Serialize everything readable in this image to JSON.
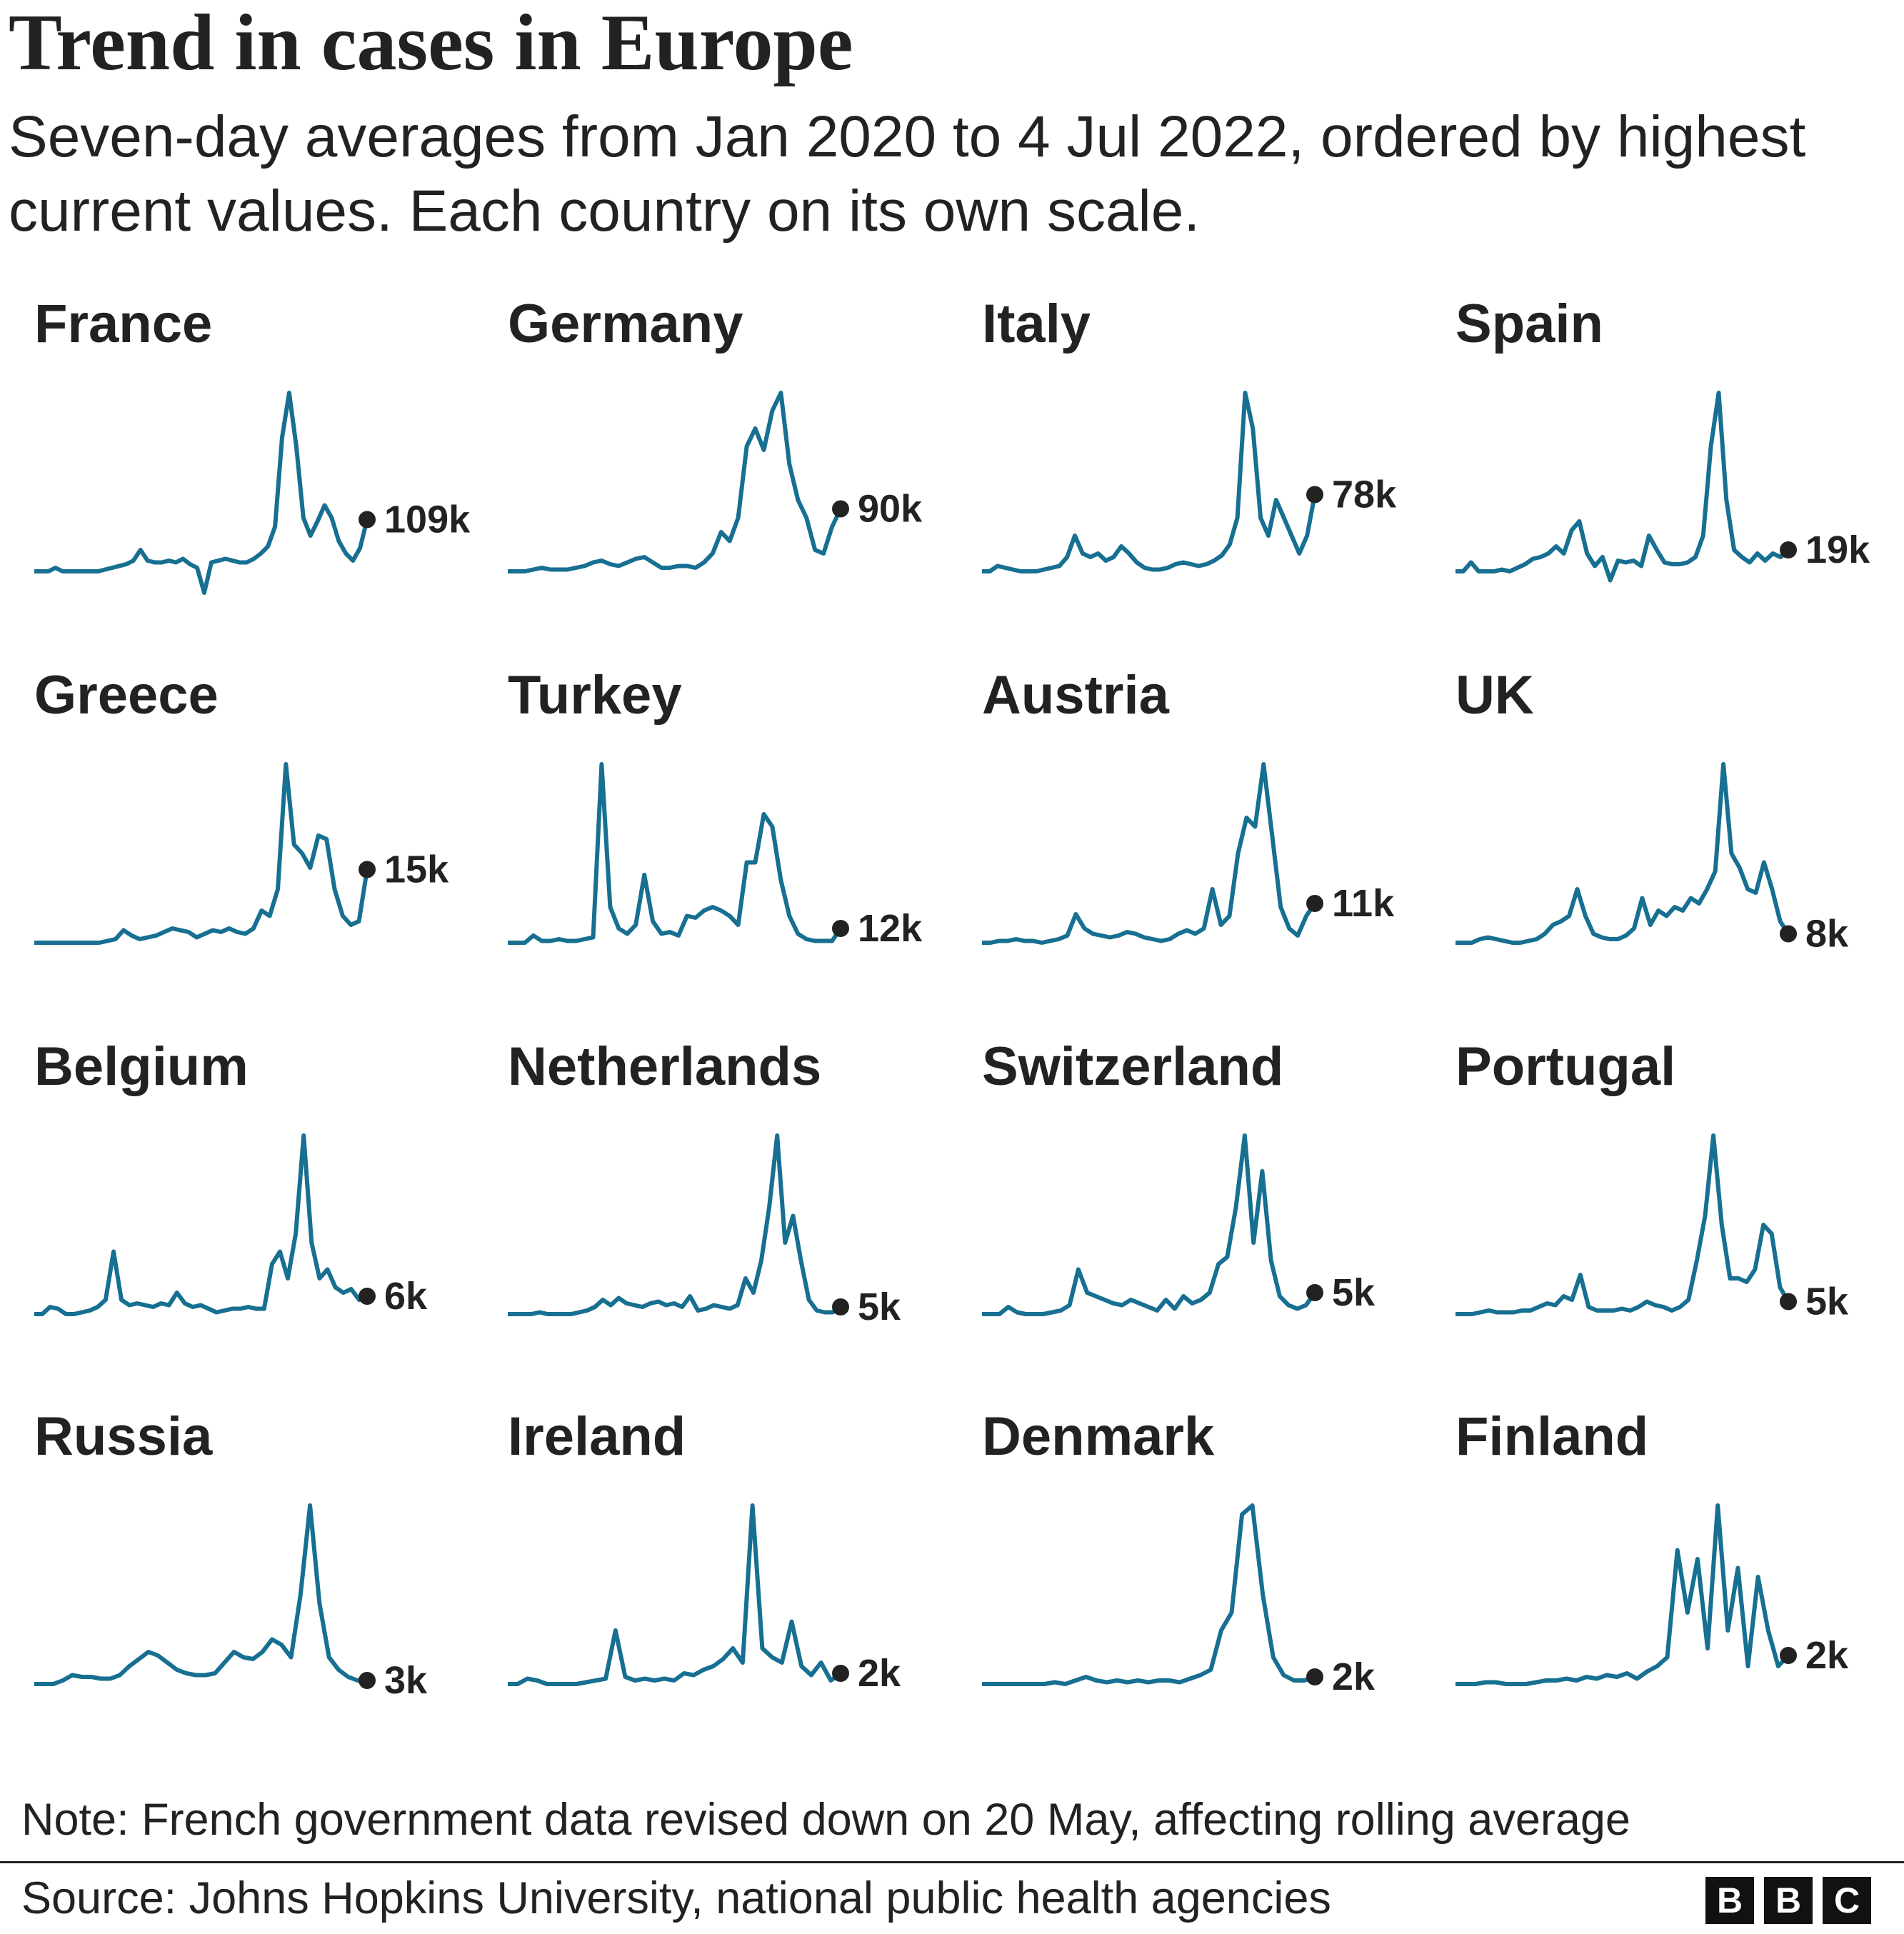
{
  "title": "Trend in cases in Europe",
  "subtitle": "Seven-day averages from Jan 2020 to 4 Jul 2022, ordered by highest current values. Each country on its own scale.",
  "note": "Note: French government data revised down on 20 May, affecting rolling average",
  "source": "Source: Johns Hopkins University, national public health agencies",
  "logo": [
    "B",
    "B",
    "C"
  ],
  "colors": {
    "line": "#176f91",
    "dot": "#222222",
    "text": "#222222"
  },
  "chart_data": {
    "type": "line",
    "title": "Trend in cases in Europe",
    "x_range": [
      "Jan 2020",
      "4 Jul 2022"
    ],
    "y_scale": "each country on its own scale, values relative to own peak",
    "panels": [
      {
        "country": "France",
        "current_label": "109k",
        "values": [
          0,
          0,
          0,
          0.02,
          0,
          0,
          0,
          0,
          0,
          0,
          0.01,
          0.02,
          0.03,
          0.04,
          0.06,
          0.12,
          0.06,
          0.05,
          0.05,
          0.06,
          0.05,
          0.07,
          0.04,
          0.02,
          -0.12,
          0.05,
          0.06,
          0.07,
          0.06,
          0.05,
          0.05,
          0.07,
          0.1,
          0.14,
          0.25,
          0.75,
          1.0,
          0.7,
          0.3,
          0.2,
          0.28,
          0.37,
          0.3,
          0.17,
          0.1,
          0.06,
          0.13,
          0.29
        ]
      },
      {
        "country": "Germany",
        "current_label": "90k",
        "values": [
          0,
          0,
          0,
          0.01,
          0.02,
          0.01,
          0.01,
          0.01,
          0.02,
          0.03,
          0.05,
          0.06,
          0.04,
          0.03,
          0.05,
          0.07,
          0.08,
          0.05,
          0.02,
          0.02,
          0.03,
          0.03,
          0.02,
          0.05,
          0.1,
          0.22,
          0.17,
          0.3,
          0.7,
          0.8,
          0.68,
          0.9,
          1.0,
          0.6,
          0.4,
          0.3,
          0.12,
          0.1,
          0.25,
          0.35
        ]
      },
      {
        "country": "Italy",
        "current_label": "78k",
        "values": [
          0,
          0,
          0.03,
          0.02,
          0.01,
          0,
          0,
          0,
          0.01,
          0.02,
          0.03,
          0.08,
          0.2,
          0.1,
          0.08,
          0.1,
          0.06,
          0.08,
          0.14,
          0.1,
          0.05,
          0.02,
          0.01,
          0.01,
          0.02,
          0.04,
          0.05,
          0.04,
          0.03,
          0.04,
          0.06,
          0.09,
          0.15,
          0.3,
          1.0,
          0.8,
          0.3,
          0.2,
          0.4,
          0.3,
          0.2,
          0.1,
          0.2,
          0.43
        ]
      },
      {
        "country": "Spain",
        "current_label": "19k",
        "values": [
          0,
          0,
          0.05,
          0,
          0,
          0,
          0.01,
          0,
          0.02,
          0.04,
          0.07,
          0.08,
          0.1,
          0.14,
          0.1,
          0.23,
          0.28,
          0.1,
          0.03,
          0.08,
          -0.05,
          0.06,
          0.05,
          0.06,
          0.03,
          0.2,
          0.12,
          0.05,
          0.04,
          0.04,
          0.05,
          0.08,
          0.2,
          0.7,
          1.0,
          0.4,
          0.12,
          0.08,
          0.05,
          0.1,
          0.06,
          0.1,
          0.08,
          0.12
        ]
      },
      {
        "country": "Greece",
        "current_label": "15k",
        "values": [
          0,
          0,
          0,
          0,
          0,
          0,
          0,
          0,
          0,
          0.01,
          0.02,
          0.07,
          0.04,
          0.02,
          0.03,
          0.04,
          0.06,
          0.08,
          0.07,
          0.06,
          0.03,
          0.05,
          0.07,
          0.06,
          0.08,
          0.06,
          0.05,
          0.08,
          0.18,
          0.15,
          0.3,
          1.0,
          0.55,
          0.5,
          0.42,
          0.6,
          0.58,
          0.3,
          0.15,
          0.1,
          0.12,
          0.41
        ]
      },
      {
        "country": "Turkey",
        "current_label": "12k",
        "values": [
          0,
          0,
          0,
          0.04,
          0.01,
          0.01,
          0.02,
          0.01,
          0.01,
          0.02,
          0.03,
          1.0,
          0.2,
          0.08,
          0.05,
          0.1,
          0.38,
          0.12,
          0.05,
          0.06,
          0.04,
          0.15,
          0.14,
          0.18,
          0.2,
          0.18,
          0.15,
          0.1,
          0.45,
          0.45,
          0.72,
          0.65,
          0.35,
          0.15,
          0.05,
          0.02,
          0.01,
          0.01,
          0.01,
          0.08
        ]
      },
      {
        "country": "Austria",
        "current_label": "11k",
        "values": [
          0,
          0,
          0.01,
          0.01,
          0.02,
          0.01,
          0.01,
          0,
          0.01,
          0.02,
          0.04,
          0.16,
          0.08,
          0.05,
          0.04,
          0.03,
          0.04,
          0.06,
          0.05,
          0.03,
          0.02,
          0.01,
          0.02,
          0.05,
          0.07,
          0.05,
          0.08,
          0.3,
          0.1,
          0.15,
          0.5,
          0.7,
          0.65,
          1.0,
          0.6,
          0.2,
          0.08,
          0.04,
          0.15,
          0.22
        ]
      },
      {
        "country": "UK",
        "current_label": "8k",
        "values": [
          0,
          0,
          0,
          0.02,
          0.03,
          0.02,
          0.01,
          0,
          0,
          0.01,
          0.02,
          0.05,
          0.1,
          0.12,
          0.15,
          0.3,
          0.15,
          0.05,
          0.03,
          0.02,
          0.02,
          0.04,
          0.08,
          0.25,
          0.1,
          0.18,
          0.15,
          0.2,
          0.18,
          0.25,
          0.22,
          0.3,
          0.4,
          1.0,
          0.5,
          0.42,
          0.3,
          0.28,
          0.45,
          0.3,
          0.12,
          0.05
        ]
      },
      {
        "country": "Belgium",
        "current_label": "6k",
        "values": [
          0,
          0,
          0.04,
          0.03,
          0,
          0,
          0.01,
          0.02,
          0.04,
          0.08,
          0.35,
          0.08,
          0.05,
          0.06,
          0.05,
          0.04,
          0.06,
          0.05,
          0.12,
          0.06,
          0.04,
          0.05,
          0.03,
          0.01,
          0.02,
          0.03,
          0.03,
          0.04,
          0.03,
          0.03,
          0.28,
          0.35,
          0.2,
          0.45,
          1.0,
          0.4,
          0.2,
          0.25,
          0.15,
          0.12,
          0.14,
          0.08,
          0.1
        ]
      },
      {
        "country": "Netherlands",
        "current_label": "5k",
        "values": [
          0,
          0,
          0,
          0,
          0.01,
          0,
          0,
          0,
          0,
          0.01,
          0.02,
          0.04,
          0.08,
          0.05,
          0.09,
          0.06,
          0.05,
          0.04,
          0.06,
          0.07,
          0.05,
          0.06,
          0.04,
          0.1,
          0.02,
          0.03,
          0.05,
          0.04,
          0.03,
          0.05,
          0.2,
          0.12,
          0.3,
          0.6,
          1.0,
          0.4,
          0.55,
          0.3,
          0.08,
          0.02,
          0.01,
          0.01,
          0.04
        ]
      },
      {
        "country": "Switzerland",
        "current_label": "5k",
        "values": [
          0,
          0,
          0,
          0.04,
          0.01,
          0,
          0,
          0,
          0.01,
          0.02,
          0.05,
          0.25,
          0.12,
          0.1,
          0.08,
          0.06,
          0.05,
          0.08,
          0.06,
          0.04,
          0.02,
          0.08,
          0.03,
          0.1,
          0.06,
          0.08,
          0.12,
          0.28,
          0.32,
          0.6,
          1.0,
          0.4,
          0.8,
          0.3,
          0.1,
          0.05,
          0.03,
          0.05,
          0.12
        ]
      },
      {
        "country": "Portugal",
        "current_label": "5k",
        "values": [
          0,
          0,
          0,
          0.01,
          0.02,
          0.01,
          0.01,
          0.01,
          0.02,
          0.02,
          0.04,
          0.06,
          0.05,
          0.1,
          0.08,
          0.22,
          0.04,
          0.02,
          0.02,
          0.02,
          0.03,
          0.02,
          0.04,
          0.07,
          0.05,
          0.04,
          0.02,
          0.04,
          0.08,
          0.3,
          0.55,
          1.0,
          0.5,
          0.2,
          0.2,
          0.18,
          0.25,
          0.5,
          0.45,
          0.15,
          0.07
        ]
      },
      {
        "country": "Russia",
        "current_label": "3k",
        "values": [
          0,
          0,
          0,
          0.02,
          0.05,
          0.04,
          0.04,
          0.03,
          0.03,
          0.05,
          0.1,
          0.14,
          0.18,
          0.16,
          0.12,
          0.08,
          0.06,
          0.05,
          0.05,
          0.06,
          0.12,
          0.18,
          0.15,
          0.14,
          0.18,
          0.25,
          0.22,
          0.15,
          0.5,
          1.0,
          0.45,
          0.15,
          0.08,
          0.04,
          0.02,
          0.02
        ]
      },
      {
        "country": "Ireland",
        "current_label": "2k",
        "values": [
          0,
          0,
          0.03,
          0.02,
          0,
          0,
          0,
          0,
          0.01,
          0.02,
          0.03,
          0.3,
          0.04,
          0.02,
          0.03,
          0.02,
          0.03,
          0.02,
          0.06,
          0.05,
          0.08,
          0.1,
          0.14,
          0.2,
          0.12,
          1.0,
          0.2,
          0.15,
          0.12,
          0.35,
          0.1,
          0.05,
          0.12,
          0.02,
          0.06
        ]
      },
      {
        "country": "Denmark",
        "current_label": "2k",
        "values": [
          0,
          0,
          0,
          0,
          0,
          0,
          0,
          0.01,
          0,
          0.02,
          0.04,
          0.02,
          0.01,
          0.02,
          0.01,
          0.02,
          0.01,
          0.02,
          0.02,
          0.01,
          0.03,
          0.05,
          0.08,
          0.3,
          0.4,
          0.95,
          1.0,
          0.5,
          0.15,
          0.05,
          0.02,
          0.02,
          0.04
        ]
      },
      {
        "country": "Finland",
        "current_label": "2k",
        "values": [
          0,
          0,
          0,
          0.01,
          0.01,
          0,
          0,
          0,
          0.01,
          0.02,
          0.02,
          0.03,
          0.02,
          0.04,
          0.03,
          0.05,
          0.04,
          0.06,
          0.03,
          0.07,
          0.1,
          0.15,
          0.75,
          0.4,
          0.7,
          0.2,
          1.0,
          0.3,
          0.65,
          0.1,
          0.6,
          0.3,
          0.1,
          0.16
        ]
      }
    ]
  }
}
